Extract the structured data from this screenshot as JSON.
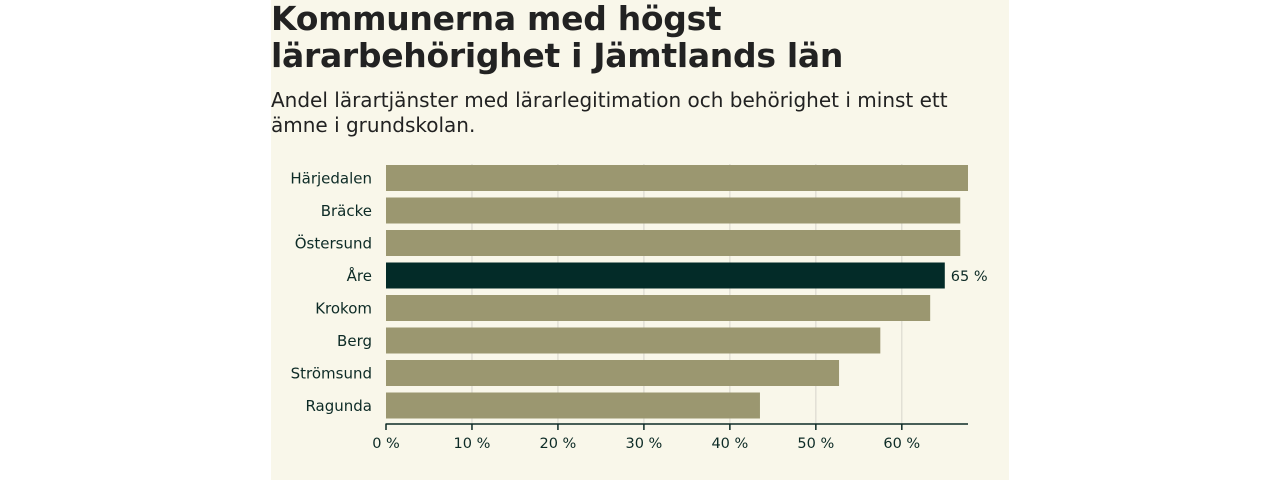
{
  "title": "Kommunerna med högst lärarbehörighet i Jämtlands län",
  "subtitle": "Andel lärartjänster med lärarlegitimation och behörighet i minst ett ämne i grundskolan.",
  "chart_data": {
    "type": "bar",
    "orientation": "horizontal",
    "title": "Kommunerna med högst lärarbehörighet i Jämtlands län",
    "subtitle": "Andel lärartjänster med lärarlegitimation och behörighet i minst ett ämne i grundskolan.",
    "categories": [
      "Härjedalen",
      "Bräcke",
      "Östersund",
      "Åre",
      "Krokom",
      "Berg",
      "Strömsund",
      "Ragunda"
    ],
    "values": [
      67.7,
      66.8,
      66.8,
      65,
      63.3,
      57.5,
      52.7,
      43.5
    ],
    "highlight": "Åre",
    "data_labels": {
      "Åre": "65 %"
    },
    "xlim": [
      0,
      67.7
    ],
    "xticks": [
      0,
      10,
      20,
      30,
      40,
      50,
      60
    ],
    "tick_labels": [
      "0 %",
      "10 %",
      "20 %",
      "30 %",
      "40 %",
      "50 %",
      "60 %"
    ],
    "xlabel": "",
    "ylabel": "",
    "grid": true,
    "colors": {
      "bar": "#9b9770",
      "highlight": "#032b28",
      "grid": "#dcdad0",
      "axis": "#0d2b26",
      "panel": "#f9f7ea"
    }
  }
}
